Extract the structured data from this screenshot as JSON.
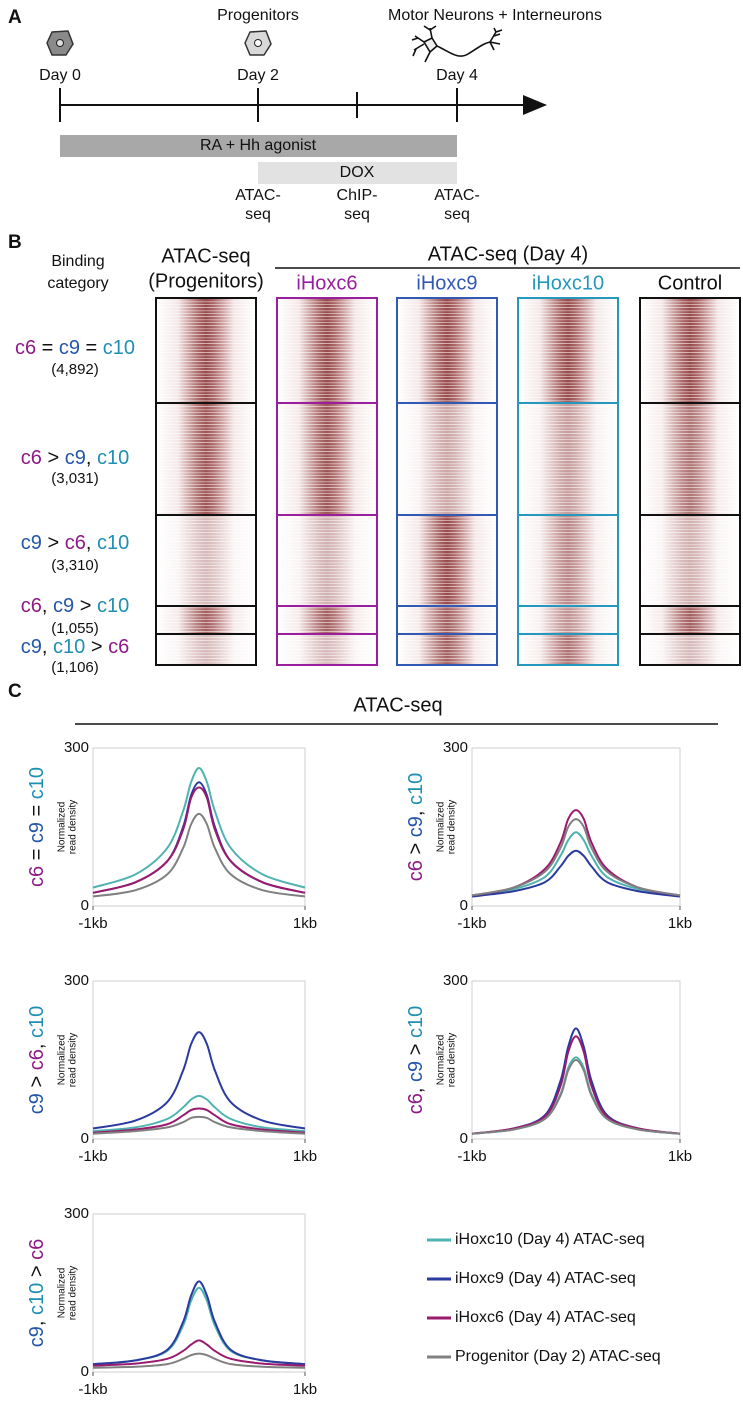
{
  "panel_a": {
    "letter": "A",
    "stages": [
      {
        "day": "Day 0"
      },
      {
        "day": "Day 2",
        "cell": "Progenitors"
      },
      {
        "day": "Day 4",
        "cell": "Motor Neurons + Interneurons"
      }
    ],
    "treatments": [
      "RA + Hh agonist",
      "DOX"
    ],
    "assays": [
      [
        "ATAC-",
        "seq"
      ],
      [
        "ChIP-",
        "seq"
      ],
      [
        "ATAC-",
        "seq"
      ]
    ]
  },
  "panel_b": {
    "letter": "B",
    "row_header": [
      "Binding",
      "category"
    ],
    "progenitor_header": [
      "ATAC-seq",
      "(Progenitors)"
    ],
    "day4_header": "ATAC-seq (Day 4)",
    "columns": [
      {
        "name": "iHoxc6",
        "color": "#9a1f9e"
      },
      {
        "name": "iHoxc9",
        "color": "#3159b6"
      },
      {
        "name": "iHoxc10",
        "color": "#2598bd"
      },
      {
        "name": "Control",
        "color": "#111111"
      }
    ],
    "categories": [
      {
        "parts": [
          {
            "text": "c6",
            "color": "#8e1a87"
          },
          {
            "text": " = "
          },
          {
            "text": "c9",
            "color": "#2457a8"
          },
          {
            "text": " = "
          },
          {
            "text": "c10",
            "color": "#1f8fb3"
          }
        ],
        "count": "(4,892)"
      },
      {
        "parts": [
          {
            "text": "c6",
            "color": "#8e1a87"
          },
          {
            "text": " > "
          },
          {
            "text": "c9",
            "color": "#2457a8"
          },
          {
            "text": ", "
          },
          {
            "text": "c10",
            "color": "#1f8fb3"
          }
        ],
        "count": "(3,031)"
      },
      {
        "parts": [
          {
            "text": "c9",
            "color": "#2457a8"
          },
          {
            "text": " > "
          },
          {
            "text": "c6",
            "color": "#8e1a87"
          },
          {
            "text": ", "
          },
          {
            "text": "c10",
            "color": "#1f8fb3"
          }
        ],
        "count": "(3,310)"
      },
      {
        "parts": [
          {
            "text": "c6",
            "color": "#8e1a87"
          },
          {
            "text": ", "
          },
          {
            "text": "c9",
            "color": "#2457a8"
          },
          {
            "text": " > "
          },
          {
            "text": "c10",
            "color": "#1f8fb3"
          }
        ],
        "count": "(1,055)"
      },
      {
        "parts": [
          {
            "text": "c9",
            "color": "#2457a8"
          },
          {
            "text": ", "
          },
          {
            "text": "c10",
            "color": "#1f8fb3"
          },
          {
            "text": " > "
          },
          {
            "text": "c6",
            "color": "#8e1a87"
          }
        ],
        "count": "(1,106)"
      }
    ]
  },
  "panel_c": {
    "letter": "C",
    "title": "ATAC-seq"
  },
  "chart_data": [
    {
      "type": "line",
      "ylabel": [
        "Normalized",
        "read density"
      ],
      "x": [
        -1000,
        -600,
        -300,
        -150,
        -75,
        0,
        75,
        150,
        300,
        600,
        1000
      ],
      "xlim": [
        -1000,
        1000
      ],
      "ylim": [
        0,
        300
      ],
      "xticks": [
        {
          "value": -1000,
          "label": "-1kb"
        },
        {
          "value": 1000,
          "label": "1kb"
        }
      ],
      "yticks": [
        0,
        300
      ],
      "grid": true,
      "series": [
        {
          "name": "iHoxc10 (Day 4) ATAC-seq",
          "color": "#4fb3b0",
          "values": [
            35,
            60,
            110,
            180,
            235,
            262,
            235,
            180,
            110,
            60,
            35
          ]
        },
        {
          "name": "iHoxc9 (Day 4) ATAC-seq",
          "color": "#2a3a9e",
          "values": [
            25,
            45,
            85,
            150,
            210,
            235,
            210,
            150,
            85,
            45,
            25
          ]
        },
        {
          "name": "iHoxc6 (Day 4) ATAC-seq",
          "color": "#9a1a6e",
          "values": [
            25,
            45,
            85,
            145,
            205,
            225,
            205,
            145,
            85,
            45,
            25
          ]
        },
        {
          "name": "Progenitor (Day 2) ATAC-seq",
          "color": "#808080",
          "values": [
            18,
            30,
            60,
            110,
            155,
            175,
            155,
            110,
            60,
            30,
            18
          ]
        }
      ]
    },
    {
      "type": "line",
      "ylabel": [
        "Normalized",
        "read density"
      ],
      "x": [
        -1000,
        -600,
        -300,
        -150,
        -75,
        0,
        75,
        150,
        300,
        600,
        1000
      ],
      "xlim": [
        -1000,
        1000
      ],
      "ylim": [
        0,
        300
      ],
      "xticks": [
        {
          "value": -1000,
          "label": "-1kb"
        },
        {
          "value": 1000,
          "label": "1kb"
        }
      ],
      "yticks": [
        0,
        300
      ],
      "grid": true,
      "series": [
        {
          "name": "iHoxc10 (Day 4) ATAC-seq",
          "color": "#4fb3b0",
          "values": [
            20,
            32,
            55,
            95,
            125,
            140,
            125,
            95,
            55,
            32,
            20
          ]
        },
        {
          "name": "iHoxc9 (Day 4) ATAC-seq",
          "color": "#2a3a9e",
          "values": [
            18,
            28,
            45,
            75,
            95,
            105,
            95,
            75,
            45,
            28,
            18
          ]
        },
        {
          "name": "iHoxc6 (Day 4) ATAC-seq",
          "color": "#9a1a6e",
          "values": [
            20,
            35,
            70,
            120,
            165,
            182,
            165,
            120,
            70,
            35,
            20
          ]
        },
        {
          "name": "Progenitor (Day 2) ATAC-seq",
          "color": "#808080",
          "values": [
            20,
            35,
            65,
            110,
            150,
            165,
            150,
            110,
            65,
            35,
            20
          ]
        }
      ]
    },
    {
      "type": "line",
      "ylabel": [
        "Normalized",
        "read density"
      ],
      "x": [
        -1000,
        -600,
        -300,
        -150,
        -75,
        0,
        75,
        150,
        300,
        600,
        1000
      ],
      "xlim": [
        -1000,
        1000
      ],
      "ylim": [
        0,
        300
      ],
      "xticks": [
        {
          "value": -1000,
          "label": "-1kb"
        },
        {
          "value": 1000,
          "label": "1kb"
        }
      ],
      "yticks": [
        0,
        300
      ],
      "grid": true,
      "series": [
        {
          "name": "iHoxc10 (Day 4) ATAC-seq",
          "color": "#4fb3b0",
          "values": [
            15,
            22,
            38,
            60,
            75,
            82,
            75,
            60,
            38,
            22,
            15
          ]
        },
        {
          "name": "iHoxc9 (Day 4) ATAC-seq",
          "color": "#2a3a9e",
          "values": [
            20,
            35,
            70,
            130,
            180,
            203,
            180,
            130,
            70,
            35,
            20
          ]
        },
        {
          "name": "iHoxc6 (Day 4) ATAC-seq",
          "color": "#9a1a6e",
          "values": [
            12,
            18,
            28,
            45,
            55,
            58,
            55,
            45,
            28,
            18,
            12
          ]
        },
        {
          "name": "Progenitor (Day 2) ATAC-seq",
          "color": "#808080",
          "values": [
            10,
            15,
            22,
            32,
            40,
            42,
            40,
            32,
            22,
            15,
            10
          ]
        }
      ]
    },
    {
      "type": "line",
      "ylabel": [
        "Normalized",
        "read density"
      ],
      "x": [
        -1000,
        -600,
        -300,
        -150,
        -75,
        0,
        75,
        150,
        300,
        600,
        1000
      ],
      "xlim": [
        -1000,
        1000
      ],
      "ylim": [
        0,
        300
      ],
      "xticks": [
        {
          "value": -1000,
          "label": "-1kb"
        },
        {
          "value": 1000,
          "label": "1kb"
        }
      ],
      "yticks": [
        0,
        300
      ],
      "grid": true,
      "series": [
        {
          "name": "iHoxc10 (Day 4) ATAC-seq",
          "color": "#4fb3b0",
          "values": [
            10,
            18,
            38,
            85,
            135,
            155,
            135,
            85,
            38,
            18,
            10
          ]
        },
        {
          "name": "iHoxc9 (Day 4) ATAC-seq",
          "color": "#2a3a9e",
          "values": [
            10,
            20,
            45,
            110,
            175,
            210,
            175,
            110,
            45,
            20,
            10
          ]
        },
        {
          "name": "iHoxc6 (Day 4) ATAC-seq",
          "color": "#9a1a6e",
          "values": [
            10,
            20,
            42,
            100,
            165,
            195,
            165,
            100,
            42,
            20,
            10
          ]
        },
        {
          "name": "Progenitor (Day 2) ATAC-seq",
          "color": "#808080",
          "values": [
            10,
            18,
            38,
            82,
            130,
            150,
            130,
            82,
            38,
            18,
            10
          ]
        }
      ]
    },
    {
      "type": "line",
      "ylabel": [
        "Normalized",
        "read density"
      ],
      "x": [
        -1000,
        -600,
        -300,
        -150,
        -75,
        0,
        75,
        150,
        300,
        600,
        1000
      ],
      "xlim": [
        -1000,
        1000
      ],
      "ylim": [
        0,
        300
      ],
      "xticks": [
        {
          "value": -1000,
          "label": "-1kb"
        },
        {
          "value": 1000,
          "label": "1kb"
        }
      ],
      "yticks": [
        0,
        300
      ],
      "grid": true,
      "series": [
        {
          "name": "iHoxc10 (Day 4) ATAC-seq",
          "color": "#4fb3b0",
          "values": [
            15,
            22,
            40,
            88,
            135,
            160,
            135,
            88,
            40,
            22,
            15
          ]
        },
        {
          "name": "iHoxc9 (Day 4) ATAC-seq",
          "color": "#2a3a9e",
          "values": [
            15,
            22,
            42,
            95,
            145,
            172,
            145,
            95,
            42,
            22,
            15
          ]
        },
        {
          "name": "iHoxc6 (Day 4) ATAC-seq",
          "color": "#9a1a6e",
          "values": [
            12,
            16,
            25,
            40,
            52,
            60,
            52,
            40,
            25,
            16,
            12
          ]
        },
        {
          "name": "Progenitor (Day 2) ATAC-seq",
          "color": "#808080",
          "values": [
            8,
            10,
            15,
            25,
            32,
            35,
            32,
            25,
            15,
            10,
            8
          ]
        }
      ]
    }
  ]
}
